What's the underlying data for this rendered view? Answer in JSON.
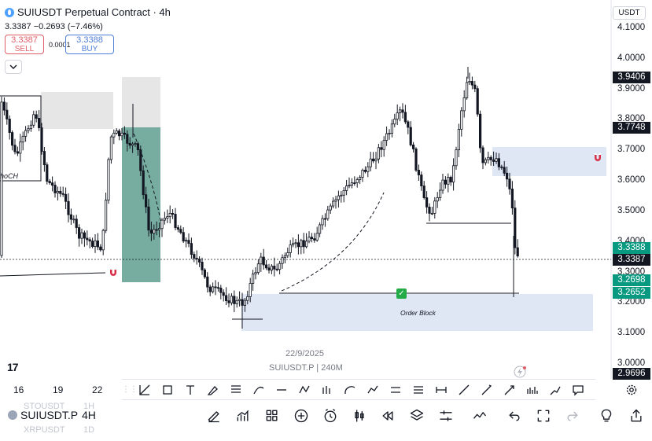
{
  "header": {
    "title": "SUIUSDT Perpetual Contract · 4h",
    "last_price": "3.3387",
    "change": "−0.2693 (−7.46%)"
  },
  "trade": {
    "sell_price": "3.3387",
    "sell_label": "SELL",
    "buy_price": "3.3388",
    "buy_label": "BUY",
    "spread": "0.0001",
    "collapse_icon": "chevron-down-icon"
  },
  "currency": "USDT",
  "price_axis": [
    "4.1000",
    "4.0000",
    "3.9000",
    "3.8000",
    "3.7000",
    "3.6000",
    "3.5000",
    "3.4000",
    "3.3000",
    "3.2000",
    "3.1000",
    "3.0000"
  ],
  "price_tags": [
    {
      "label": "3.9406",
      "color": "#131722"
    },
    {
      "label": "3.7748",
      "color": "#131722"
    },
    {
      "label": "3.3388",
      "color": "#089981"
    },
    {
      "label": "3.3387",
      "color": "#131722"
    },
    {
      "label": "3.2698",
      "color": "#089981"
    },
    {
      "label": "3.2652",
      "color": "#089981"
    },
    {
      "label": "2.9696",
      "color": "#131722"
    }
  ],
  "annotations": {
    "order_block": "Order Block",
    "choch": "hoCH",
    "crosshair_date": "22/9/2025",
    "series_info": "SUIUSDT.P | 240M"
  },
  "time_axis": [
    "16",
    "19",
    "22"
  ],
  "tv_logo": "17",
  "drawing_tools": [
    "trendline-icon",
    "rectangle-icon",
    "text-icon",
    "brush-icon",
    "fib-icon",
    "curve-icon",
    "horizontal-line-icon",
    "pattern-icon",
    "long-short-icon",
    "arc-icon",
    "polyline-icon",
    "parallel-channel-icon",
    "regression-icon",
    "measure-icon",
    "ray-icon",
    "pencil-icon",
    "arrow-icon",
    "volume-profile-icon",
    "path-icon",
    "callout-icon"
  ],
  "bottom": {
    "symbol": "SUIUSDT.P",
    "timeframe": "4H",
    "ghost_row1_symbol": "STOUSDT",
    "ghost_row1_tf": "1H",
    "ghost_row2_symbol": "XRPUSDT",
    "ghost_row2_tf": "1D",
    "icons": [
      "draw-icon",
      "indicators-icon",
      "layouts-icon",
      "add-icon",
      "alert-icon",
      "candle-type-icon",
      "replay-icon",
      "layers-icon",
      "settings-sliders-icon",
      "compare-icon",
      "undo-icon",
      "fullscreen-icon",
      "redo-icon",
      "light-bulb-icon",
      "share-icon"
    ]
  },
  "colors": {
    "up": "#131722",
    "down": "#131722",
    "accent_teal": "#089981",
    "order_block_fill": "#dfe7f5"
  }
}
